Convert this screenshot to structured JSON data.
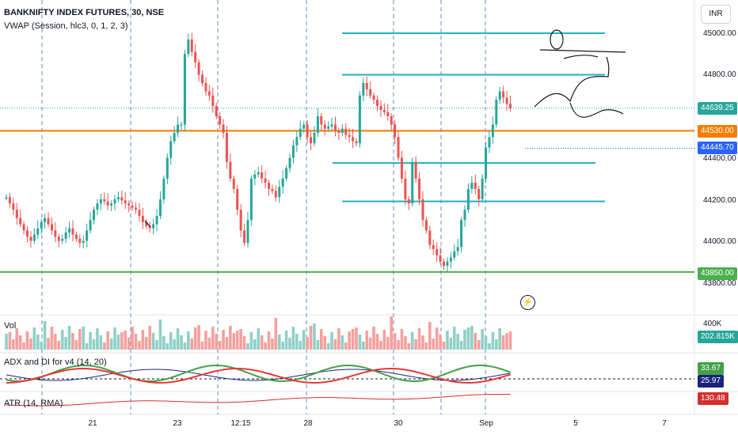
{
  "header": {
    "symbol_title": "BANKNIFTY INDEX FUTURES, 30, NSE",
    "vwap_legend": "VWAP (Session, hlc3, 0, 1, 2, 3)",
    "currency": "INR"
  },
  "price_axis": {
    "ticks": [
      "45000.00",
      "44800.00",
      "44600.00",
      "44400.00",
      "44200.00",
      "44000.00",
      "43800.00"
    ],
    "ymin": 43700,
    "ymax": 45100
  },
  "price_tags": {
    "last": "44639.25",
    "orange_level": "44530.00",
    "vwap": "44445.70",
    "green_level": "43850.00"
  },
  "volume_pane": {
    "title": "Vol",
    "tick": "400K",
    "value": "202.815K"
  },
  "adx_pane": {
    "title": "ADX and DI for v4 (14, 20)",
    "di_plus": "33.67",
    "adx": "25.97"
  },
  "atr_pane": {
    "title": "ATR (14, RMA)",
    "value": "130.48"
  },
  "time_axis": {
    "labels": [
      "21",
      "23",
      "12:15",
      "28",
      "30",
      "Sep",
      "5",
      "7"
    ]
  },
  "colors": {
    "up": "#26a69a",
    "down": "#ef5350",
    "orange": "#f57c00",
    "green_line": "#4caf50",
    "cyan": "#1fb1c4",
    "blue_tag": "#2962ff",
    "atr": "#d32f2f",
    "adx_tag": "#1a237e"
  },
  "icons": {
    "alert": "lightning-icon"
  },
  "chart_data": {
    "type": "candlestick",
    "y_range": [
      43700,
      45100
    ],
    "horizontal_levels": [
      {
        "price": 44530,
        "color": "orange"
      },
      {
        "price": 43850,
        "color": "green"
      }
    ],
    "drawn_levels": [
      45000,
      44800,
      44375,
      44190
    ],
    "current_price": 44639.25,
    "vwap": 44445.7,
    "volume_latest": 202815,
    "adx": {
      "di_plus": 33.67,
      "adx": 25.97
    },
    "atr": 130.48
  }
}
